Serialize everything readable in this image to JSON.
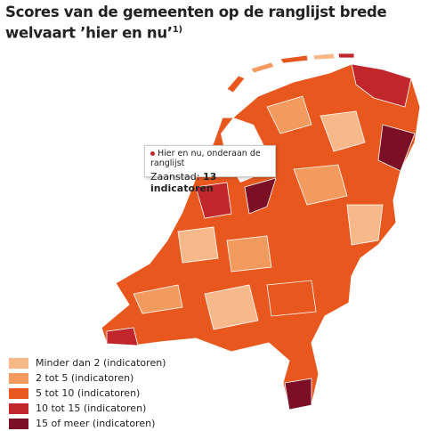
{
  "header": {
    "title": "Scores van de gemeenten op de ranglijst brede welvaart ’hier en nu’",
    "footnote_mark": "1)"
  },
  "tooltip": {
    "heading": "Hier en nu, onderaan de ranglijst",
    "municipality": "Zaanstad:",
    "score": "13 indicatoren"
  },
  "legend": {
    "items": [
      {
        "label": "Minder dan 2 (indicatoren)",
        "color": "#f7b98a"
      },
      {
        "label": "2 tot 5 (indicatoren)",
        "color": "#f39a5e"
      },
      {
        "label": "5 tot 10 (indicatoren)",
        "color": "#e8581e"
      },
      {
        "label": "10 tot 15 (indicatoren)",
        "color": "#c0262b"
      },
      {
        "label": "15 of meer (indicatoren)",
        "color": "#7a0f25"
      }
    ]
  }
}
